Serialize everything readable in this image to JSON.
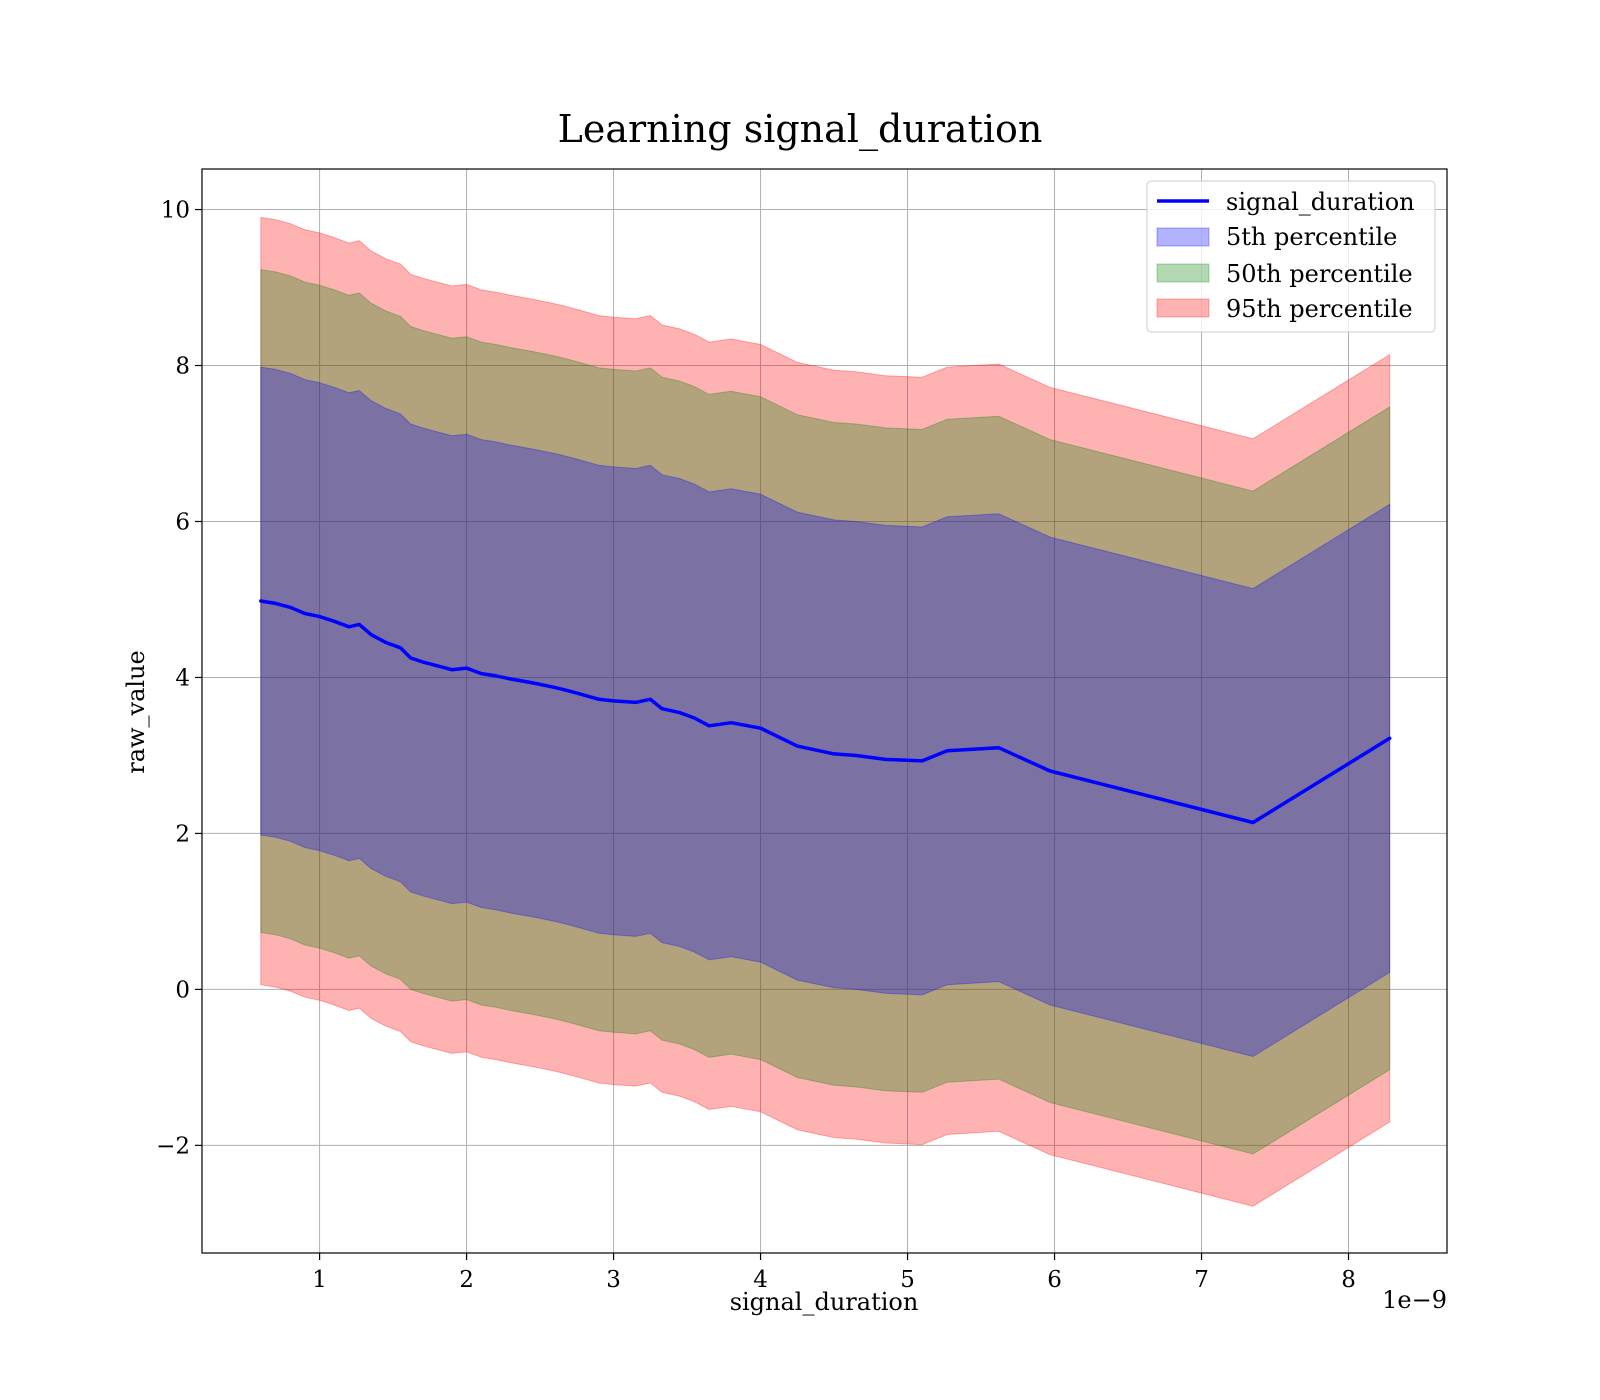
{
  "chart_data": {
    "type": "line",
    "title": "Learning signal_duration",
    "xlabel": "signal_duration",
    "ylabel": "raw_value",
    "x_offset_label": "1e−9",
    "xlim": [
      0.2,
      8.67
    ],
    "ylim": [
      -3.38,
      10.52
    ],
    "xticks": [
      1,
      2,
      3,
      4,
      5,
      6,
      7,
      8
    ],
    "xtick_labels": [
      "1",
      "2",
      "3",
      "4",
      "5",
      "6",
      "7",
      "8"
    ],
    "yticks": [
      -2,
      0,
      2,
      4,
      6,
      8,
      10
    ],
    "ytick_labels": [
      "−2",
      "0",
      "2",
      "4",
      "6",
      "8",
      "10"
    ],
    "grid": true,
    "legend_position": "upper right",
    "x": [
      0.6,
      0.7,
      0.8,
      0.9,
      1.0,
      1.1,
      1.2,
      1.27,
      1.35,
      1.45,
      1.55,
      1.62,
      1.7,
      1.8,
      1.9,
      2.0,
      2.1,
      2.2,
      2.3,
      2.45,
      2.58,
      2.65,
      2.75,
      2.9,
      3.0,
      3.15,
      3.25,
      3.33,
      3.45,
      3.55,
      3.65,
      3.8,
      4.0,
      4.25,
      4.5,
      4.65,
      4.85,
      5.1,
      5.27,
      5.62,
      5.97,
      7.35,
      8.28
    ],
    "series": [
      {
        "name": "signal_duration",
        "color": "#0000ff",
        "values": [
          4.98,
          4.95,
          4.9,
          4.82,
          4.78,
          4.72,
          4.65,
          4.68,
          4.55,
          4.45,
          4.38,
          4.25,
          4.2,
          4.15,
          4.1,
          4.12,
          4.05,
          4.02,
          3.98,
          3.93,
          3.88,
          3.85,
          3.8,
          3.72,
          3.7,
          3.68,
          3.72,
          3.6,
          3.55,
          3.48,
          3.38,
          3.42,
          3.35,
          3.12,
          3.02,
          3.0,
          2.95,
          2.93,
          3.06,
          3.1,
          2.8,
          2.14,
          3.22
        ]
      }
    ],
    "bands": [
      {
        "name": "5th percentile",
        "color": "#0000ff",
        "half_width": 3.0
      },
      {
        "name": "50th percentile",
        "color": "#008000",
        "half_width": 4.25
      },
      {
        "name": "95th percentile",
        "color": "#ff0000",
        "half_width": 4.92
      }
    ]
  }
}
